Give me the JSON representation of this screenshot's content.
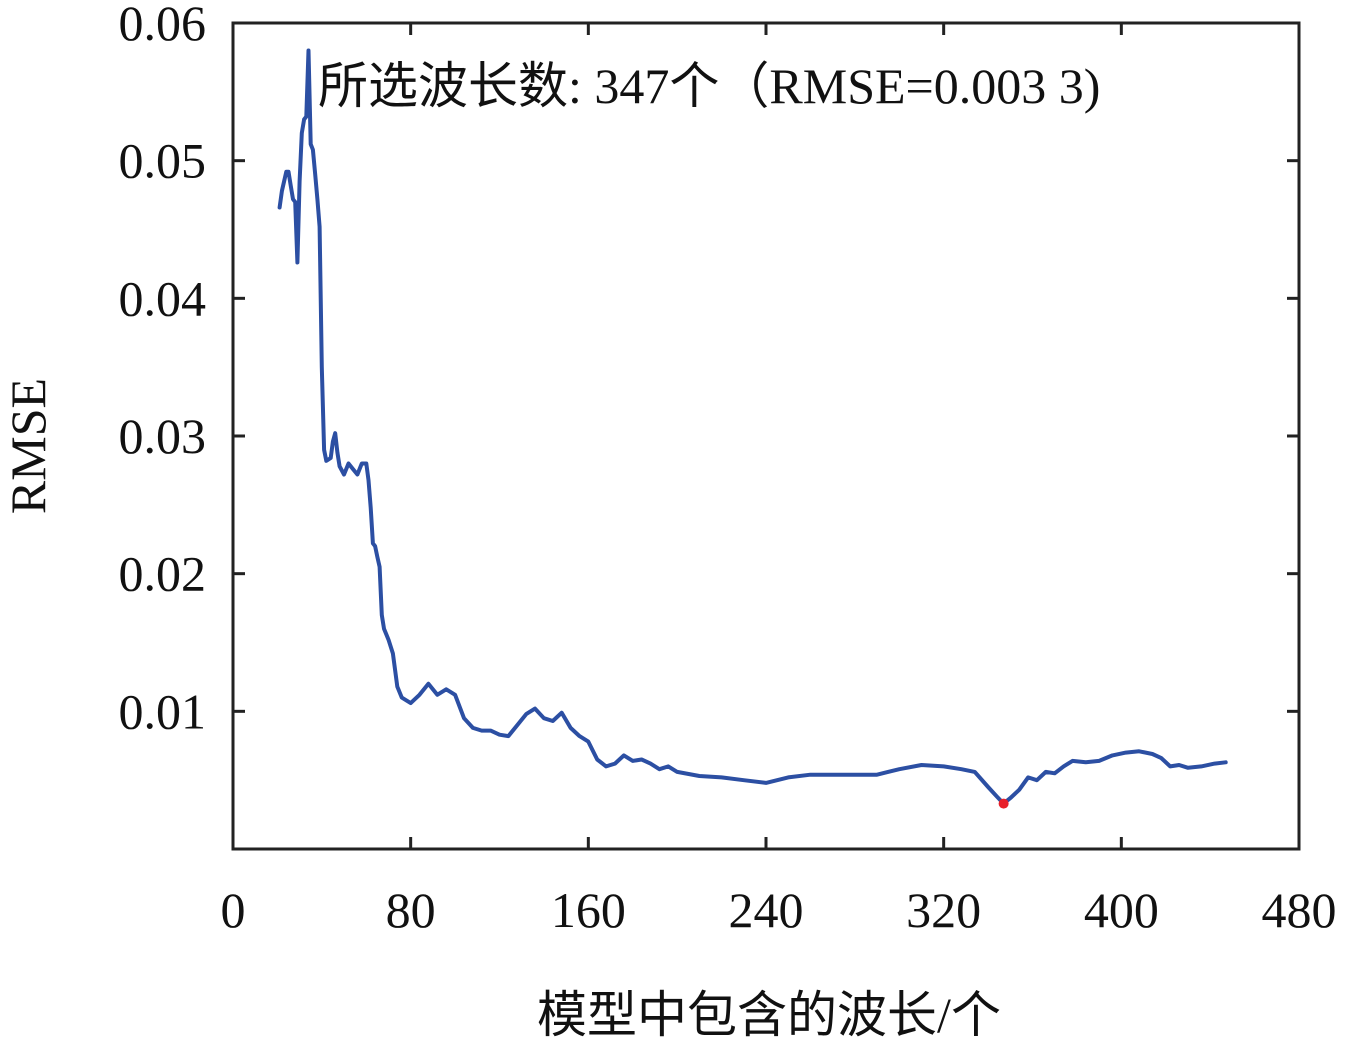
{
  "chart_data": {
    "type": "line",
    "xlabel": "模型中包含的波长/个",
    "ylabel": "RMSE",
    "xlim": [
      0,
      480
    ],
    "ylim": [
      0,
      0.06
    ],
    "xticks": [
      0,
      80,
      160,
      240,
      320,
      400,
      480
    ],
    "yticks": [
      0.01,
      0.02,
      0.03,
      0.04,
      0.05,
      0.06
    ],
    "xtick_labels": [
      "0",
      "80",
      "160",
      "240",
      "320",
      "400",
      "480"
    ],
    "ytick_labels": [
      "0.01",
      "0.02",
      "0.03",
      "0.04",
      "0.05",
      "0.06"
    ],
    "grid": false,
    "annotation": "所选波长数: 347个（RMSE=0.003 3)",
    "highlight_point": {
      "x": 347,
      "y": 0.0033
    },
    "series": [
      {
        "color": "#2c4fa3",
        "x": [
          21,
          22,
          24,
          25,
          26,
          27,
          28,
          29,
          30,
          31,
          32,
          33,
          34,
          35,
          36,
          37,
          38,
          39,
          40,
          41,
          42,
          43,
          44,
          45,
          46,
          47,
          48,
          50,
          52,
          54,
          56,
          58,
          60,
          61,
          62,
          63,
          64,
          65,
          66,
          67,
          68,
          70,
          72,
          74,
          76,
          78,
          80,
          84,
          88,
          92,
          96,
          100,
          104,
          108,
          112,
          116,
          120,
          124,
          128,
          132,
          136,
          140,
          144,
          148,
          152,
          156,
          160,
          164,
          168,
          172,
          176,
          180,
          184,
          188,
          192,
          196,
          200,
          210,
          220,
          230,
          240,
          250,
          260,
          270,
          280,
          290,
          300,
          310,
          320,
          328,
          334,
          340,
          344,
          347,
          350,
          354,
          358,
          362,
          366,
          370,
          374,
          378,
          384,
          390,
          396,
          402,
          408,
          414,
          418,
          422,
          426,
          430,
          436,
          442,
          447
        ],
        "values": [
          0.0466,
          0.0478,
          0.0492,
          0.0492,
          0.0482,
          0.0472,
          0.047,
          0.0426,
          0.0485,
          0.052,
          0.053,
          0.0532,
          0.058,
          0.0512,
          0.0508,
          0.049,
          0.0472,
          0.0452,
          0.035,
          0.029,
          0.0282,
          0.0283,
          0.0284,
          0.0296,
          0.0302,
          0.0288,
          0.0278,
          0.0272,
          0.028,
          0.0276,
          0.0272,
          0.028,
          0.028,
          0.0268,
          0.0248,
          0.0222,
          0.022,
          0.0212,
          0.0205,
          0.017,
          0.016,
          0.0152,
          0.0142,
          0.0118,
          0.011,
          0.0108,
          0.0106,
          0.0112,
          0.012,
          0.0112,
          0.0116,
          0.0112,
          0.0095,
          0.0088,
          0.0086,
          0.0086,
          0.0083,
          0.0082,
          0.009,
          0.0098,
          0.0102,
          0.0095,
          0.0093,
          0.0099,
          0.0088,
          0.0082,
          0.0078,
          0.0065,
          0.006,
          0.0062,
          0.0068,
          0.0064,
          0.0065,
          0.0062,
          0.0058,
          0.006,
          0.0056,
          0.0053,
          0.0052,
          0.005,
          0.0048,
          0.0052,
          0.0054,
          0.0054,
          0.0054,
          0.0054,
          0.0058,
          0.0061,
          0.006,
          0.0058,
          0.0056,
          0.0045,
          0.0038,
          0.0033,
          0.0037,
          0.0043,
          0.0052,
          0.005,
          0.0056,
          0.0055,
          0.006,
          0.0064,
          0.0063,
          0.0064,
          0.0068,
          0.007,
          0.0071,
          0.0069,
          0.0066,
          0.006,
          0.0061,
          0.0059,
          0.006,
          0.0062,
          0.0063
        ]
      }
    ]
  }
}
